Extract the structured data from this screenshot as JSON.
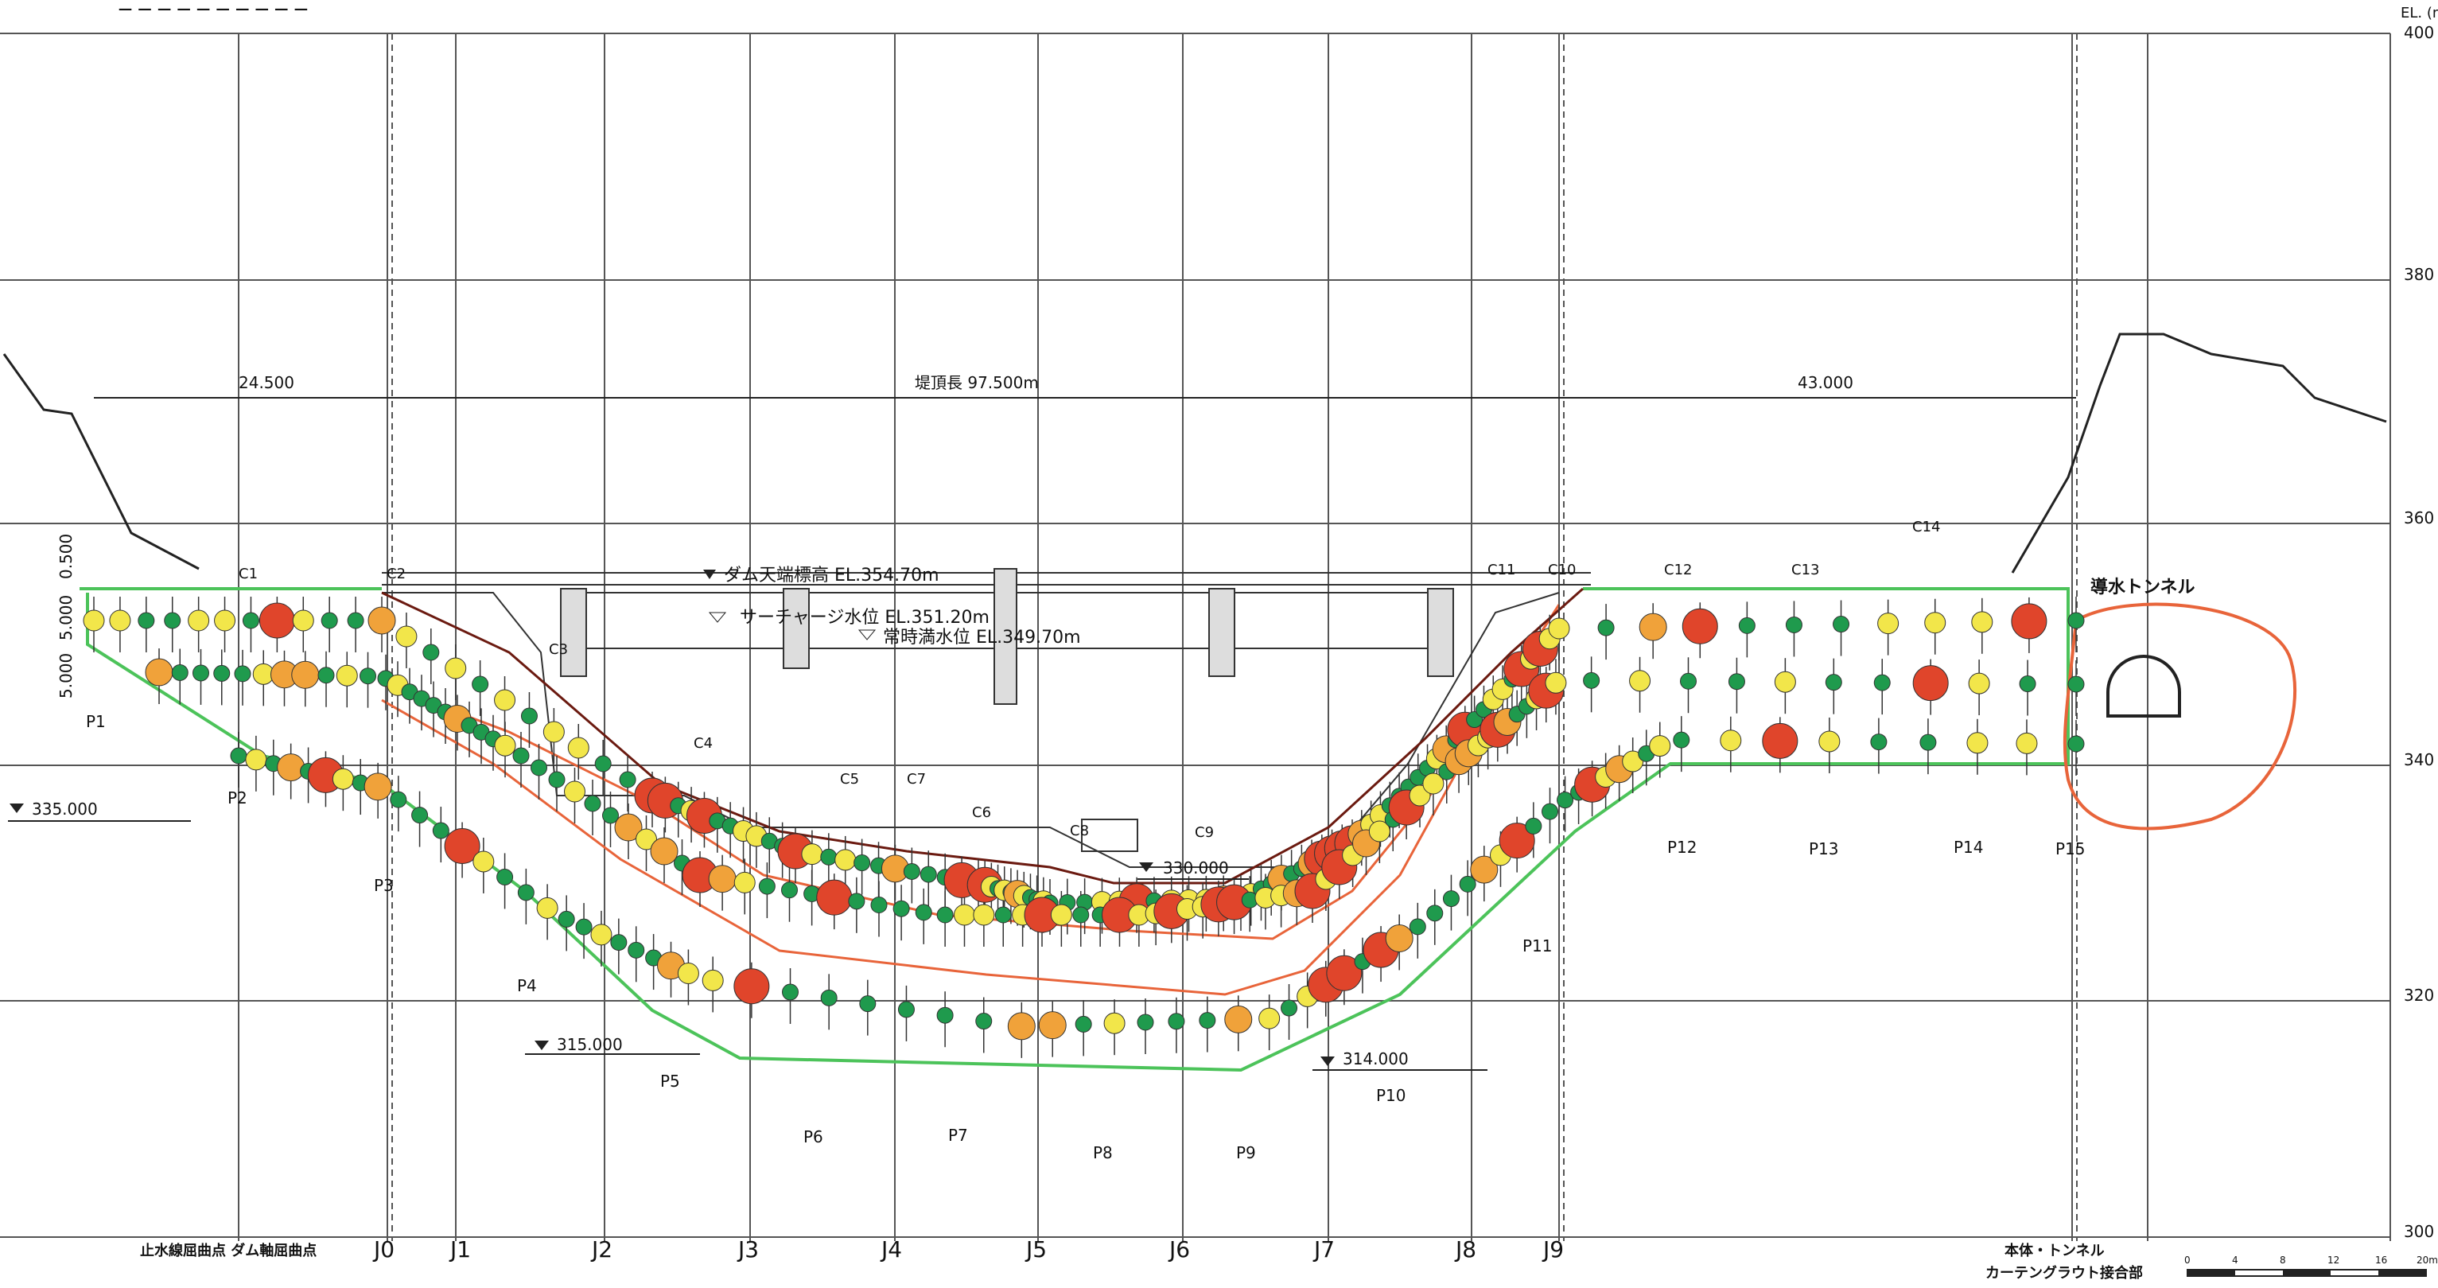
{
  "title_fragment": "_ _ _ _ _ _ _ _ _ _",
  "elevation_axis": {
    "label": "EL. (m)",
    "ticks": [
      "400",
      "380",
      "360",
      "340",
      "320",
      "300"
    ]
  },
  "joints": [
    "J0",
    "J1",
    "J2",
    "J3",
    "J4",
    "J5",
    "J6",
    "J7",
    "J8",
    "J9"
  ],
  "dimensions": {
    "left": "24.500",
    "crest_length": "堤頂長 97.500m",
    "right": "43.000"
  },
  "vertical_dims": [
    "0.500",
    "5.000",
    "5.000"
  ],
  "water_levels": {
    "dam_crest": "ダム天端標高 EL.354.70m",
    "surcharge": "サーチャージ水位 EL.351.20m",
    "normal": "常時満水位 EL.349.70m"
  },
  "levels": {
    "left": "335.000",
    "bottom_left": "315.000",
    "mid": "330.000",
    "bottom_right": "314.000"
  },
  "c_labels": [
    "C1",
    "C2",
    "C3",
    "C4",
    "C5",
    "C7",
    "C6",
    "C8",
    "C9",
    "C11",
    "C10",
    "C12",
    "C13",
    "C14"
  ],
  "p_labels": [
    "P1",
    "P2",
    "P3",
    "P4",
    "P5",
    "P6",
    "P7",
    "P8",
    "P9",
    "P10",
    "P11",
    "P12",
    "P13",
    "P14",
    "P15"
  ],
  "tunnel_label": "導水トンネル",
  "bottom_left_notes": "止水線屈曲点  ダム軸屈曲点",
  "bottom_right_notes": [
    "本体・トンネル",
    "カーテングラウト接合部"
  ],
  "scale_bar": [
    "0",
    "4",
    "8",
    "12",
    "16",
    "20m"
  ],
  "colors": {
    "green": "#1f9a4d",
    "yellow": "#f2e64a",
    "orange": "#f0a23a",
    "red": "#e0452b",
    "grid": "#555555",
    "green_line": "#4cc35a",
    "orange_line": "#e8643a",
    "brown_line": "#6b1a10"
  }
}
